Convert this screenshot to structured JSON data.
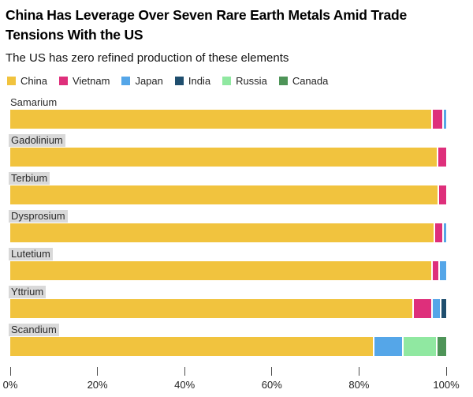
{
  "header": {
    "title": "China Has Leverage Over Seven Rare Earth Metals Amid Trade Tensions With the US",
    "subtitle": "The US has zero refined production of these elements"
  },
  "legend": {
    "position": "top",
    "items": [
      {
        "label": "China",
        "color": "#F1C33E"
      },
      {
        "label": "Vietnam",
        "color": "#DE2F7B"
      },
      {
        "label": "Japan",
        "color": "#55A6E8"
      },
      {
        "label": "India",
        "color": "#1F4E6E"
      },
      {
        "label": "Russia",
        "color": "#90E8A1"
      },
      {
        "label": "Canada",
        "color": "#4E9458"
      }
    ]
  },
  "chart_data": {
    "type": "bar",
    "orientation": "horizontal",
    "stacked": true,
    "value_unit": "percent share of refined production",
    "categories": [
      "Samarium",
      "Gadolinium",
      "Terbium",
      "Dysprosium",
      "Lutetium",
      "Yttrium",
      "Scandium"
    ],
    "category_label_highlighted": [
      false,
      true,
      true,
      true,
      true,
      true,
      true
    ],
    "series": [
      {
        "name": "China",
        "color": "#F1C33E",
        "values": [
          97.2,
          98.2,
          98.4,
          97.9,
          97.2,
          93.3,
          84.0
        ]
      },
      {
        "name": "Vietnam",
        "color": "#DE2F7B",
        "values": [
          2.2,
          1.8,
          1.6,
          1.5,
          1.3,
          4.0,
          0
        ]
      },
      {
        "name": "Japan",
        "color": "#55A6E8",
        "values": [
          0.6,
          0,
          0,
          0.6,
          1.5,
          1.6,
          6.5
        ]
      },
      {
        "name": "India",
        "color": "#1F4E6E",
        "values": [
          0,
          0,
          0,
          0,
          0,
          1.1,
          0
        ]
      },
      {
        "name": "Russia",
        "color": "#90E8A1",
        "values": [
          0,
          0,
          0,
          0,
          0,
          0,
          7.5
        ]
      },
      {
        "name": "Canada",
        "color": "#4E9458",
        "values": [
          0,
          0,
          0,
          0,
          0,
          0,
          2.0
        ]
      }
    ],
    "xlim": [
      0,
      100
    ],
    "x_ticks": [
      "0%",
      "20%",
      "40%",
      "60%",
      "80%",
      "100%"
    ],
    "x_tick_values": [
      0,
      20,
      40,
      60,
      80,
      100
    ],
    "grid": false,
    "legend_position": "top"
  },
  "styles": {
    "category_label_bg": "#d9d9d9",
    "segment_gap_color": "#ffffff",
    "axis_tick_color": "#4d4d4d",
    "text_color": "#222222"
  }
}
